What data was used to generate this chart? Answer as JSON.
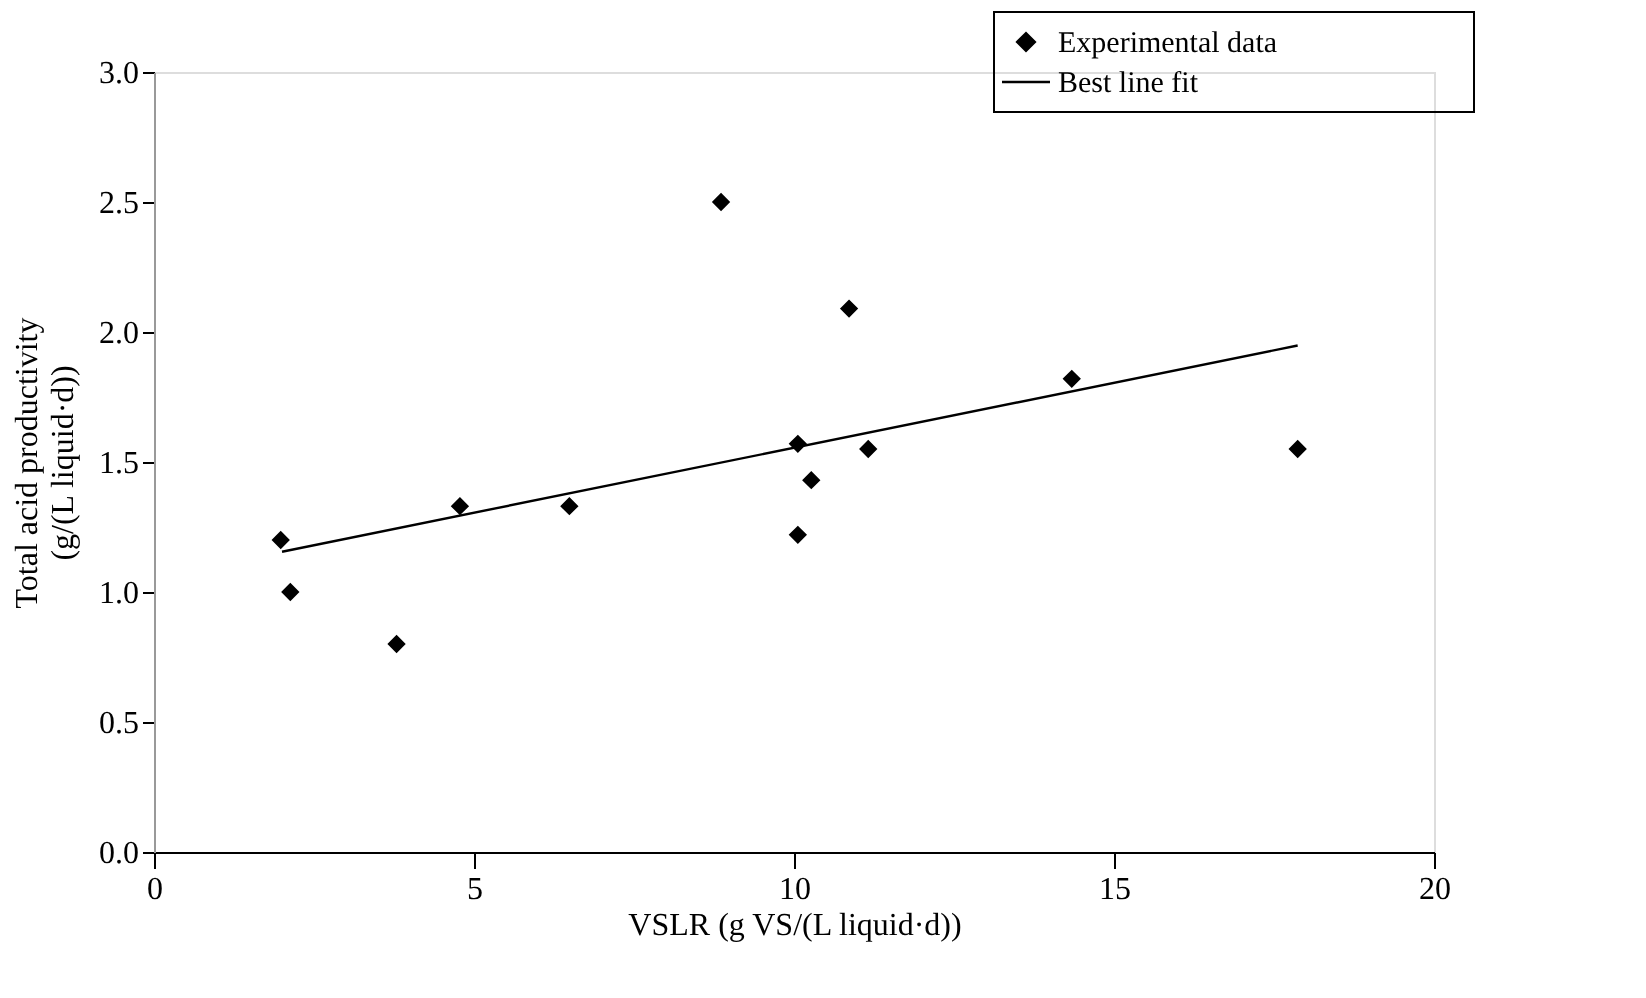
{
  "chart_data": {
    "type": "scatter",
    "xlabel": "VSLR (g VS/(L liquid·d))",
    "ylabel": "Total acid productivity\n(g/(L liquid·d))",
    "series": [
      {
        "name": "Experimental data",
        "type": "scatter",
        "color": "#000000",
        "marker": "diamond",
        "x": [
          1.98,
          2.13,
          3.79,
          4.78,
          6.49,
          8.86,
          10.06,
          10.06,
          10.27,
          10.86,
          11.16,
          14.34,
          17.87
        ],
        "values": [
          1.2,
          1.0,
          0.8,
          1.33,
          1.33,
          2.5,
          1.57,
          1.22,
          1.43,
          2.09,
          1.55,
          1.82,
          1.55
        ]
      },
      {
        "name": "Best line fit",
        "type": "line",
        "color": "#000000",
        "line_style": "solid",
        "x": [
          2.0,
          17.87
        ],
        "values": [
          1.155,
          1.948
        ]
      }
    ],
    "xlim": [
      0,
      20
    ],
    "xticks": [
      0,
      5,
      10,
      15,
      20
    ],
    "ylim": [
      0,
      3
    ],
    "yticks": [
      {
        "value": 0,
        "label": "0.0"
      },
      {
        "value": 0.5,
        "label": "0.5"
      },
      {
        "value": 1,
        "label": "1.0"
      },
      {
        "value": 1.5,
        "label": "1.5"
      },
      {
        "value": 2,
        "label": "2.0"
      },
      {
        "value": 2.5,
        "label": "2.5"
      },
      {
        "value": 3,
        "label": "3.0"
      }
    ],
    "grid": false,
    "legend": "top right"
  }
}
